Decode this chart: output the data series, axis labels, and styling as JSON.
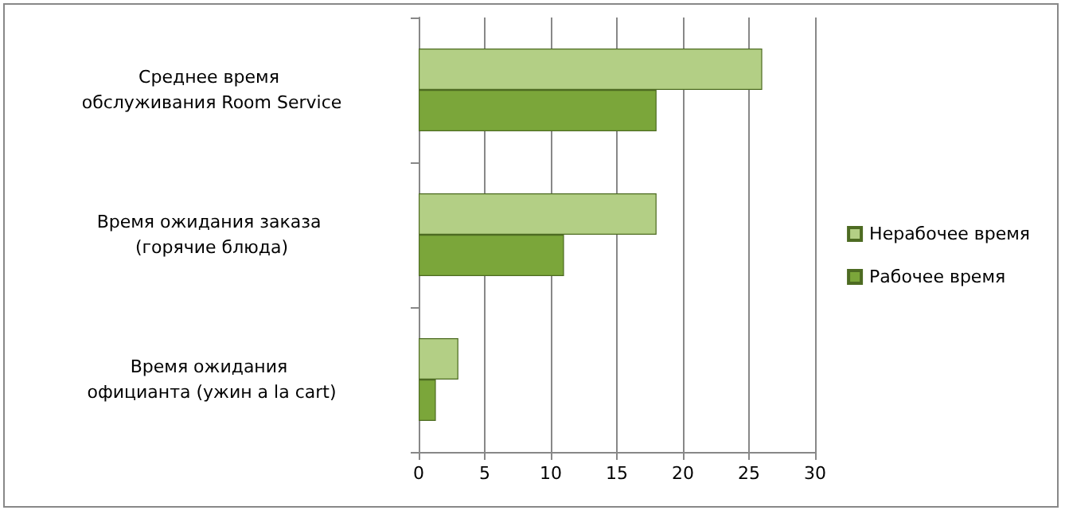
{
  "chart_data": {
    "type": "bar",
    "orientation": "horizontal",
    "categories": [
      "Среднее время обслуживания Room Service",
      "Время ожидания заказа (горячие блюда)",
      "Время ожидания официанта (ужин a la cart)"
    ],
    "series": [
      {
        "name": "Нерабочее время",
        "color": "#b3cf85",
        "values": [
          26,
          18,
          3
        ]
      },
      {
        "name": "Рабочее время",
        "color": "#7ba63a",
        "values": [
          18,
          11,
          1.3
        ]
      }
    ],
    "xlim": [
      0,
      30
    ],
    "xticks": [
      0,
      5,
      10,
      15,
      20,
      25,
      30
    ],
    "grid": "x",
    "legend": "right"
  }
}
